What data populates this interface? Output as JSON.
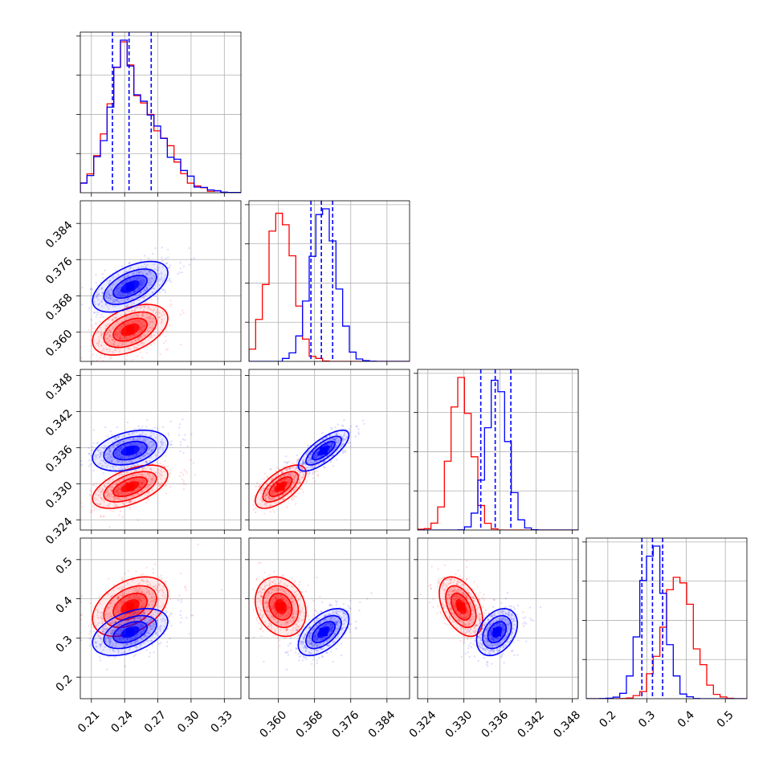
{
  "chart_data": {
    "type": "corner",
    "grid": true,
    "parameters": [
      {
        "ticks": [
          0.21,
          0.24,
          0.27,
          0.3,
          0.33
        ],
        "tick_labels": [
          "0.21",
          "0.24",
          "0.27",
          "0.30",
          "0.33"
        ],
        "range": [
          0.2,
          0.345
        ]
      },
      {
        "ticks": [
          0.36,
          0.368,
          0.376,
          0.384
        ],
        "tick_labels": [
          "0.360",
          "0.368",
          "0.376",
          "0.384"
        ],
        "range": [
          0.3535,
          0.389
        ]
      },
      {
        "ticks": [
          0.324,
          0.33,
          0.336,
          0.342,
          0.348
        ],
        "tick_labels": [
          "0.324",
          "0.330",
          "0.336",
          "0.342",
          "0.348"
        ],
        "range": [
          0.3223,
          0.349
        ]
      },
      {
        "ticks": [
          0.2,
          0.3,
          0.4,
          0.5
        ],
        "tick_labels": [
          "0.2",
          "0.3",
          "0.4",
          "0.5"
        ],
        "range": [
          0.145,
          0.555
        ]
      }
    ],
    "series": [
      {
        "color": "#ff0000",
        "means": [
          0.245,
          0.3605,
          0.3295,
          0.38
        ],
        "sds": [
          0.017,
          0.0028,
          0.0018,
          0.038
        ],
        "corr": [
          [
            0,
            0
          ],
          [
            0.45,
            0
          ],
          [
            0.55,
            0.65
          ],
          [
            0.4,
            -0.2,
            -0.45
          ]
        ],
        "show_quantiles": false
      },
      {
        "color": "#0000ff",
        "means": [
          0.245,
          0.37,
          0.3355,
          0.315
        ],
        "sds": [
          0.017,
          0.0028,
          0.0017,
          0.03
        ],
        "corr": [
          [
            0,
            0
          ],
          [
            0.55,
            0
          ],
          [
            0.35,
            0.75
          ],
          [
            0.45,
            0.55,
            0.35
          ]
        ],
        "show_quantiles": true,
        "quantiles": [
          [
            0.229,
            0.244,
            0.264
          ],
          [
            0.3672,
            0.3695,
            0.372
          ],
          [
            0.3328,
            0.3352,
            0.3378
          ],
          [
            0.287,
            0.314,
            0.34
          ]
        ]
      }
    ]
  }
}
